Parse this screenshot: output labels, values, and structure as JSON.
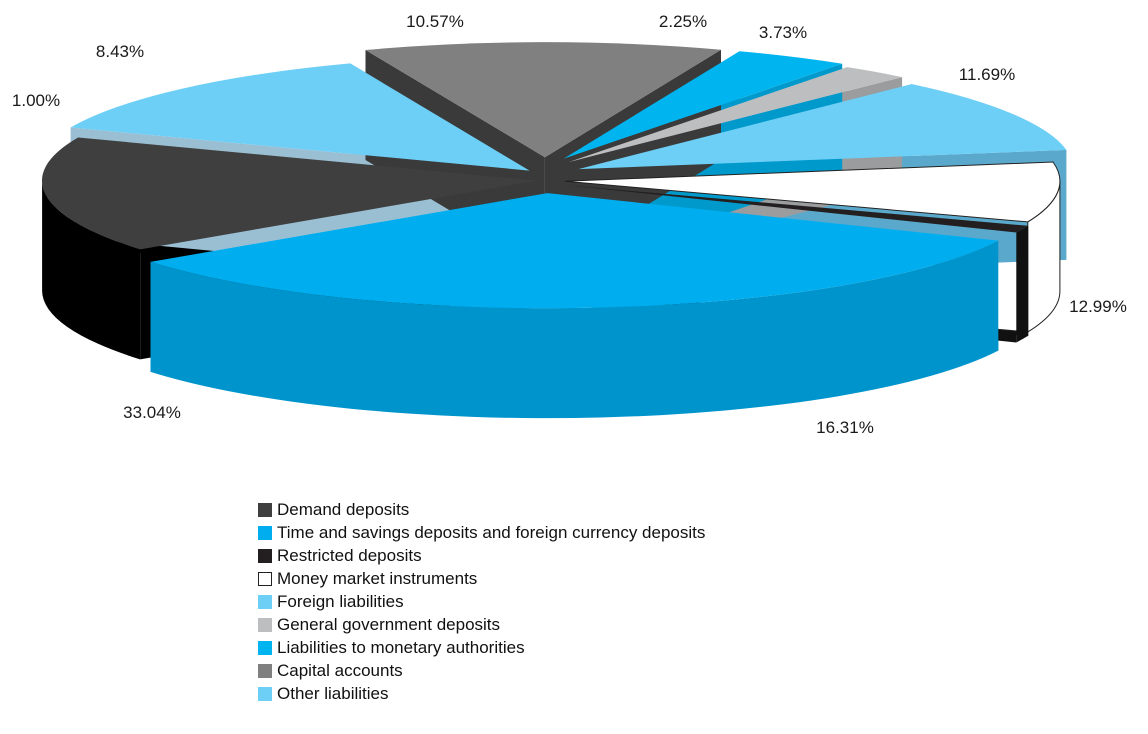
{
  "chart_data": {
    "type": "pie",
    "title": "",
    "exploded_3d": true,
    "slices": [
      {
        "name": "Demand deposits",
        "value": 16.31,
        "label": "16.31%",
        "color": "#3f3f3f",
        "side_color": "#000000"
      },
      {
        "name": "Time and savings deposits and foreign currency deposits",
        "value": 33.04,
        "label": "33.04%",
        "color": "#00aeef",
        "side_color": "#0094cc"
      },
      {
        "name": "Restricted deposits",
        "value": 1.0,
        "label": "1.00%",
        "color": "#231f20",
        "side_color": "#111111"
      },
      {
        "name": "Money market instruments",
        "value": 8.43,
        "label": "8.43%",
        "color": "#ffffff",
        "side_color": "#ffffff"
      },
      {
        "name": "Foreign liabilities",
        "value": 10.57,
        "label": "10.57%",
        "color": "#6dcff6",
        "side_color": "#5aa9cc"
      },
      {
        "name": "General government deposits",
        "value": 2.25,
        "label": "2.25%",
        "color": "#bcbec0",
        "side_color": "#9a9c9e"
      },
      {
        "name": "Liabilities to monetary authorities",
        "value": 3.73,
        "label": "3.73%",
        "color": "#00b5ef",
        "side_color": "#0099cc"
      },
      {
        "name": "Capital accounts",
        "value": 11.69,
        "label": "11.69%",
        "color": "#808080",
        "side_color": "#3a3a3a"
      },
      {
        "name": "Other liabilities",
        "value": 12.99,
        "label": "12.99%",
        "color": "#6dcff6",
        "side_color": "#9abfd3"
      }
    ],
    "legend_position": "bottom"
  }
}
